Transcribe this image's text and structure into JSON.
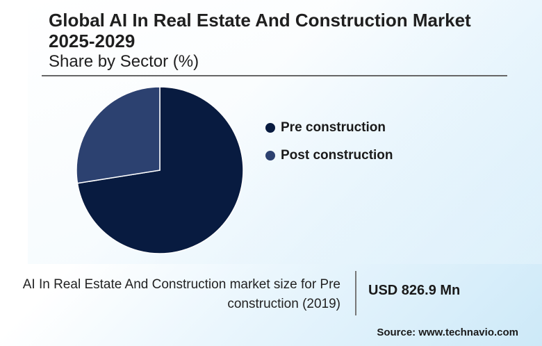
{
  "header": {
    "title": "Global AI In Real Estate And Construction Market 2025-2029",
    "subtitle": "Share by Sector (%)"
  },
  "chart_data": {
    "type": "pie",
    "title": "Global AI In Real Estate And Construction Market 2025-2029",
    "subtitle": "Share by Sector (%)",
    "categories": [
      "Pre construction",
      "Post construction"
    ],
    "values": [
      72.5,
      27.5
    ],
    "colors": [
      "#081b40",
      "#2c4170"
    ],
    "start_angle_deg": 0,
    "direction": "clockwise",
    "legend_position": "right"
  },
  "footer": {
    "market_label": "AI In Real Estate And Construction market size for Pre construction (2019)",
    "market_value": "USD 826.9 Mn",
    "source": "Source: www.technavio.com"
  }
}
